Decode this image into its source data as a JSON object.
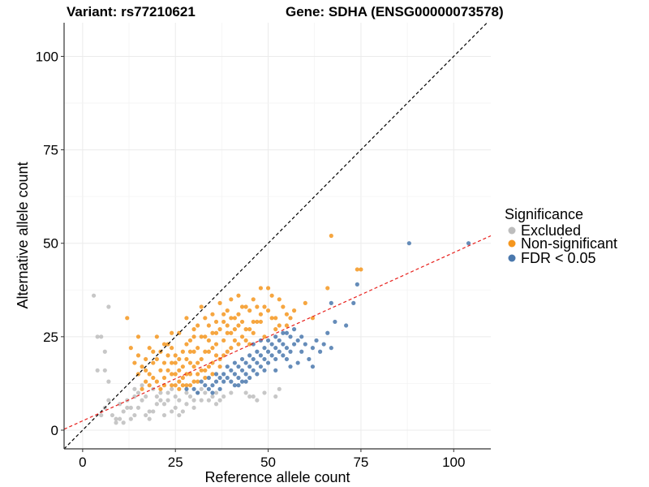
{
  "chart_data": {
    "type": "scatter",
    "title_variant": "Variant: rs77210621",
    "title_gene": "Gene: SDHA (ENSG00000073578)",
    "xlabel": "Reference allele count",
    "ylabel": "Alternative allele count",
    "xlim": [
      -5,
      110
    ],
    "ylim": [
      -5,
      109
    ],
    "xticks": [
      0,
      25,
      50,
      75,
      100
    ],
    "yticks": [
      0,
      25,
      50,
      75,
      100
    ],
    "grid": true,
    "legend": {
      "title": "Significance",
      "position": "right",
      "entries": [
        {
          "label": "Excluded",
          "color": "#bdbdbd"
        },
        {
          "label": "Non-significant",
          "color": "#f5961e"
        },
        {
          "label": "FDR < 0.05",
          "color": "#4a78ad"
        }
      ]
    },
    "reference_lines": [
      {
        "name": "identity",
        "slope": 1,
        "intercept": 0,
        "color": "#000000",
        "style": "dashed"
      },
      {
        "name": "fit",
        "slope": 0.45,
        "intercept": 2.5,
        "color": "#e8201c",
        "style": "dashed"
      }
    ],
    "series": [
      {
        "name": "Excluded",
        "color": "#bdbdbd",
        "points": [
          [
            3,
            36
          ],
          [
            4,
            25
          ],
          [
            5,
            25
          ],
          [
            4,
            16
          ],
          [
            6,
            21
          ],
          [
            6,
            16
          ],
          [
            7,
            33
          ],
          [
            7,
            13
          ],
          [
            7,
            8
          ],
          [
            8,
            4
          ],
          [
            9,
            2
          ],
          [
            9,
            3
          ],
          [
            10,
            3
          ],
          [
            11,
            5
          ],
          [
            12,
            6
          ],
          [
            13,
            6
          ],
          [
            14,
            9
          ],
          [
            15,
            10
          ],
          [
            16,
            8
          ],
          [
            17,
            9
          ],
          [
            16,
            12
          ],
          [
            18,
            5
          ],
          [
            19,
            5
          ],
          [
            20,
            7
          ],
          [
            20,
            9
          ],
          [
            21,
            8
          ],
          [
            22,
            7
          ],
          [
            23,
            8
          ],
          [
            24,
            5
          ],
          [
            25,
            6
          ],
          [
            26,
            8
          ],
          [
            27,
            5
          ],
          [
            22,
            4
          ],
          [
            15,
            6
          ],
          [
            18,
            3
          ],
          [
            13,
            3
          ],
          [
            28,
            10
          ],
          [
            29,
            9
          ],
          [
            30,
            8
          ],
          [
            31,
            10
          ],
          [
            32,
            8
          ],
          [
            33,
            10
          ],
          [
            34,
            8
          ],
          [
            35,
            9
          ],
          [
            36,
            10
          ],
          [
            37,
            8
          ],
          [
            38,
            9
          ],
          [
            28,
            7
          ],
          [
            26,
            4
          ],
          [
            46,
            9
          ],
          [
            47,
            8
          ],
          [
            52,
            9
          ],
          [
            25,
            9
          ],
          [
            23,
            10
          ],
          [
            21,
            10
          ],
          [
            17,
            4
          ],
          [
            12,
            8
          ],
          [
            10,
            7
          ],
          [
            14,
            11
          ],
          [
            19,
            11
          ],
          [
            32,
            11
          ],
          [
            40,
            10
          ],
          [
            44,
            10
          ],
          [
            49,
            10
          ],
          [
            53,
            11
          ],
          [
            45,
            9
          ],
          [
            30,
            6
          ],
          [
            24,
            11
          ],
          [
            14,
            4
          ],
          [
            6,
            6
          ],
          [
            5,
            4
          ],
          [
            11,
            2
          ],
          [
            36,
            7
          ]
        ]
      },
      {
        "name": "Non-significant",
        "color": "#f5961e",
        "points": [
          [
            12,
            30
          ],
          [
            15,
            25
          ],
          [
            13,
            22
          ],
          [
            15,
            20
          ],
          [
            16,
            17
          ],
          [
            18,
            15
          ],
          [
            17,
            13
          ],
          [
            19,
            21
          ],
          [
            20,
            25
          ],
          [
            21,
            16
          ],
          [
            22,
            18
          ],
          [
            22,
            14
          ],
          [
            23,
            20
          ],
          [
            24,
            15
          ],
          [
            24,
            22
          ],
          [
            25,
            12
          ],
          [
            25,
            18
          ],
          [
            26,
            26
          ],
          [
            26,
            16
          ],
          [
            27,
            21
          ],
          [
            27,
            14
          ],
          [
            28,
            30
          ],
          [
            28,
            19
          ],
          [
            29,
            12
          ],
          [
            29,
            24
          ],
          [
            30,
            17
          ],
          [
            30,
            27
          ],
          [
            31,
            15
          ],
          [
            31,
            22
          ],
          [
            32,
            33
          ],
          [
            32,
            19
          ],
          [
            33,
            16
          ],
          [
            33,
            25
          ],
          [
            34,
            21
          ],
          [
            34,
            28
          ],
          [
            35,
            18
          ],
          [
            35,
            31
          ],
          [
            36,
            23
          ],
          [
            36,
            26
          ],
          [
            37,
            19
          ],
          [
            37,
            34
          ],
          [
            38,
            24
          ],
          [
            38,
            29
          ],
          [
            39,
            21
          ],
          [
            39,
            32
          ],
          [
            40,
            26
          ],
          [
            41,
            24
          ],
          [
            41,
            30
          ],
          [
            42,
            28
          ],
          [
            43,
            25
          ],
          [
            44,
            33
          ],
          [
            44,
            27
          ],
          [
            45,
            32
          ],
          [
            45,
            23
          ],
          [
            46,
            26
          ],
          [
            46,
            35
          ],
          [
            47,
            29
          ],
          [
            48,
            38
          ],
          [
            48,
            31
          ],
          [
            49,
            33
          ],
          [
            49,
            25
          ],
          [
            50,
            38
          ],
          [
            51,
            36
          ],
          [
            52,
            30
          ],
          [
            52,
            27
          ],
          [
            53,
            35
          ],
          [
            54,
            33
          ],
          [
            55,
            31
          ],
          [
            55,
            28
          ],
          [
            56,
            30
          ],
          [
            57,
            32
          ],
          [
            60,
            34
          ],
          [
            62,
            30
          ],
          [
            67,
            52
          ],
          [
            74,
            43
          ],
          [
            75,
            43
          ],
          [
            66,
            38
          ],
          [
            14,
            18
          ],
          [
            17,
            16
          ],
          [
            19,
            18
          ],
          [
            20,
            13
          ],
          [
            21,
            21
          ],
          [
            23,
            23
          ],
          [
            24,
            18
          ],
          [
            25,
            20
          ],
          [
            26,
            13
          ],
          [
            27,
            17
          ],
          [
            28,
            15
          ],
          [
            29,
            18
          ],
          [
            30,
            21
          ],
          [
            30,
            13
          ],
          [
            31,
            18
          ],
          [
            32,
            16
          ],
          [
            33,
            21
          ],
          [
            33,
            14
          ],
          [
            34,
            17
          ],
          [
            35,
            15
          ],
          [
            35,
            22
          ],
          [
            36,
            20
          ],
          [
            37,
            17
          ],
          [
            37,
            27
          ],
          [
            38,
            20
          ],
          [
            39,
            26
          ],
          [
            40,
            22
          ],
          [
            40,
            30
          ],
          [
            41,
            27
          ],
          [
            42,
            23
          ],
          [
            43,
            29
          ],
          [
            44,
            24
          ],
          [
            47,
            33
          ],
          [
            50,
            32
          ],
          [
            51,
            30
          ],
          [
            19,
            14
          ],
          [
            22,
            12
          ],
          [
            25,
            15
          ],
          [
            27,
            12
          ],
          [
            29,
            15
          ],
          [
            31,
            13
          ],
          [
            16,
            11
          ],
          [
            18,
            12
          ],
          [
            21,
            11
          ],
          [
            24,
            12
          ],
          [
            26,
            11
          ],
          [
            28,
            12
          ],
          [
            23,
            16
          ],
          [
            22,
            23
          ],
          [
            18,
            22
          ],
          [
            20,
            19
          ],
          [
            26,
            19
          ],
          [
            28,
            23
          ],
          [
            29,
            21
          ],
          [
            32,
            25
          ],
          [
            34,
            24
          ],
          [
            36,
            29
          ],
          [
            38,
            31
          ],
          [
            39,
            28
          ],
          [
            42,
            31
          ],
          [
            43,
            33
          ],
          [
            46,
            29
          ],
          [
            15,
            15
          ],
          [
            17,
            19
          ],
          [
            31,
            28
          ],
          [
            33,
            30
          ],
          [
            35,
            26
          ],
          [
            40,
            35
          ],
          [
            42,
            36
          ],
          [
            45,
            27
          ],
          [
            48,
            29
          ],
          [
            53,
            28
          ],
          [
            24,
            26
          ],
          [
            30,
            25
          ]
        ]
      },
      {
        "name": "FDR < 0.05",
        "color": "#4a78ad",
        "points": [
          [
            28,
            11
          ],
          [
            30,
            11
          ],
          [
            31,
            10
          ],
          [
            32,
            13
          ],
          [
            33,
            12
          ],
          [
            34,
            11
          ],
          [
            35,
            12
          ],
          [
            36,
            13
          ],
          [
            37,
            11
          ],
          [
            38,
            13
          ],
          [
            38,
            15
          ],
          [
            39,
            14
          ],
          [
            40,
            13
          ],
          [
            40,
            16
          ],
          [
            41,
            15
          ],
          [
            41,
            12
          ],
          [
            42,
            14
          ],
          [
            42,
            17
          ],
          [
            43,
            16
          ],
          [
            43,
            13
          ],
          [
            44,
            15
          ],
          [
            44,
            18
          ],
          [
            45,
            17
          ],
          [
            45,
            14
          ],
          [
            46,
            19
          ],
          [
            46,
            16
          ],
          [
            47,
            18
          ],
          [
            47,
            21
          ],
          [
            48,
            20
          ],
          [
            48,
            17
          ],
          [
            49,
            22
          ],
          [
            49,
            19
          ],
          [
            50,
            21
          ],
          [
            50,
            24
          ],
          [
            51,
            23
          ],
          [
            51,
            20
          ],
          [
            52,
            22
          ],
          [
            52,
            25
          ],
          [
            53,
            24
          ],
          [
            53,
            21
          ],
          [
            54,
            26
          ],
          [
            54,
            23
          ],
          [
            55,
            22
          ],
          [
            55,
            19
          ],
          [
            56,
            25
          ],
          [
            56,
            21
          ],
          [
            57,
            23
          ],
          [
            58,
            18
          ],
          [
            58,
            24
          ],
          [
            59,
            21
          ],
          [
            60,
            23
          ],
          [
            61,
            19
          ],
          [
            62,
            17
          ],
          [
            62,
            22
          ],
          [
            63,
            24
          ],
          [
            64,
            21
          ],
          [
            65,
            23
          ],
          [
            66,
            26
          ],
          [
            67,
            22
          ],
          [
            67,
            34
          ],
          [
            68,
            29
          ],
          [
            71,
            28
          ],
          [
            73,
            34
          ],
          [
            74,
            39
          ],
          [
            88,
            50
          ],
          [
            104,
            50
          ],
          [
            36,
            15
          ],
          [
            37,
            14
          ],
          [
            39,
            17
          ],
          [
            41,
            18
          ],
          [
            43,
            19
          ],
          [
            45,
            20
          ],
          [
            47,
            15
          ],
          [
            49,
            16
          ],
          [
            50,
            18
          ],
          [
            52,
            19
          ],
          [
            54,
            20
          ],
          [
            56,
            17
          ],
          [
            57,
            27
          ],
          [
            59,
            25
          ],
          [
            46,
            23
          ],
          [
            48,
            24
          ],
          [
            42,
            12
          ],
          [
            44,
            13
          ],
          [
            34,
            14
          ],
          [
            35,
            10
          ],
          [
            52,
            16
          ],
          [
            55,
            26
          ]
        ]
      }
    ]
  }
}
